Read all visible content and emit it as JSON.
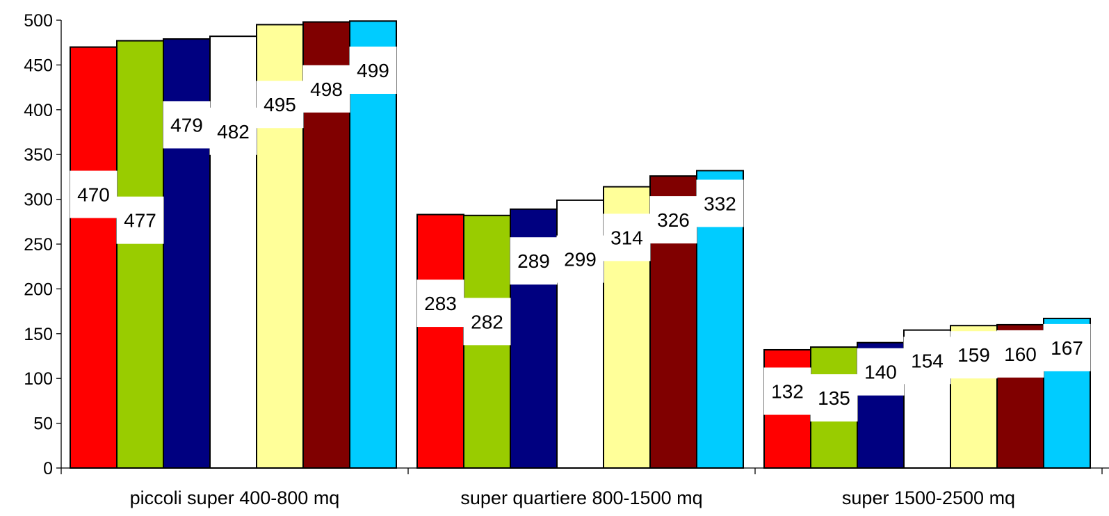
{
  "chart_data": {
    "type": "bar",
    "title": "",
    "xlabel": "",
    "ylabel": "",
    "ylim": [
      0,
      500
    ],
    "y_ticks": [
      0,
      50,
      100,
      150,
      200,
      250,
      300,
      350,
      400,
      450,
      500
    ],
    "categories": [
      "piccoli super 400-800 mq",
      "super quartiere 800-1500 mq",
      "super 1500-2500 mq"
    ],
    "series": [
      {
        "color": "#FF0000",
        "values": [
          470,
          283,
          132
        ]
      },
      {
        "color": "#99CC00",
        "values": [
          477,
          282,
          135
        ]
      },
      {
        "color": "#000080",
        "values": [
          479,
          289,
          140
        ]
      },
      {
        "color": "#FFFFFF",
        "values": [
          482,
          299,
          154
        ]
      },
      {
        "color": "#FFFF99",
        "values": [
          495,
          314,
          159
        ]
      },
      {
        "color": "#800000",
        "values": [
          498,
          326,
          160
        ]
      },
      {
        "color": "#00CCFF",
        "values": [
          499,
          332,
          167
        ]
      }
    ],
    "grid": false,
    "legend": "none",
    "data_labels": true
  }
}
